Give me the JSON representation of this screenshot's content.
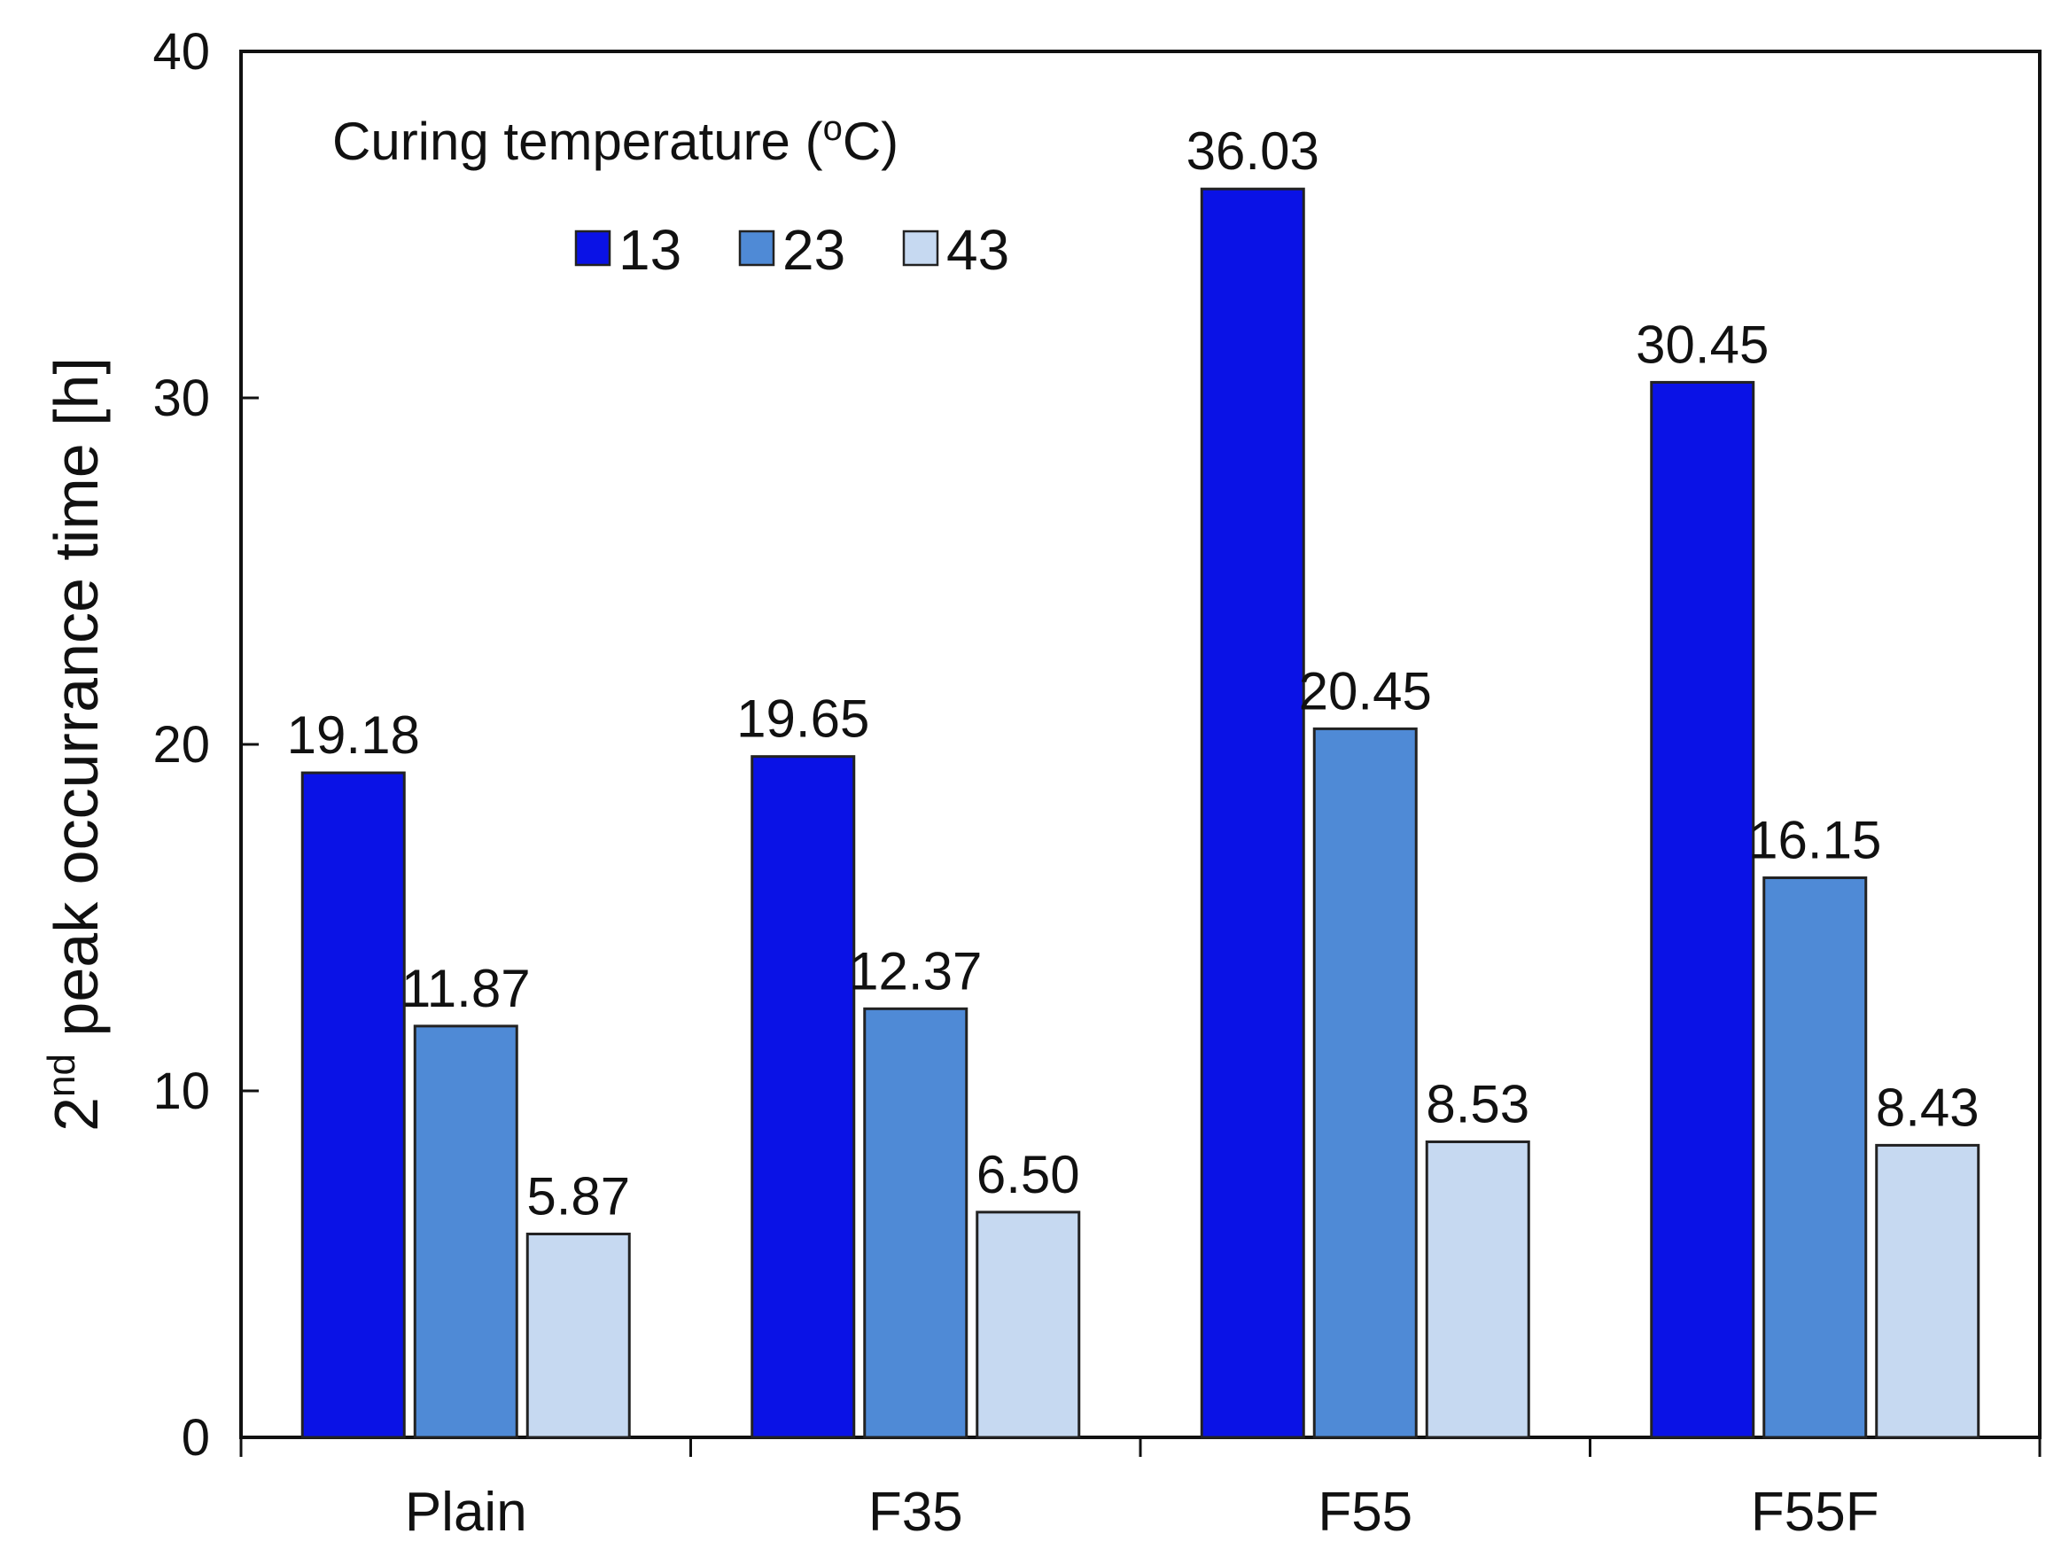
{
  "chart_data": {
    "type": "bar",
    "title": "",
    "xlabel": "",
    "ylabel": {
      "base": "2",
      "superscript": "nd",
      "rest": " peak occurrance time [h]"
    },
    "ylim": [
      0,
      40
    ],
    "yticks": [
      0,
      10,
      20,
      30,
      40
    ],
    "categories": [
      "Plain",
      "F35",
      "F55",
      "F55F"
    ],
    "legend": {
      "title": "Curing temperature (",
      "title_superscript": "o",
      "title_tail": "C)",
      "placement": "top-left"
    },
    "series": [
      {
        "name": "13",
        "color": "#0a12e6",
        "values": [
          19.18,
          19.65,
          36.03,
          30.45
        ],
        "labels": [
          "19.18",
          "19.65",
          "36.03",
          "30.45"
        ]
      },
      {
        "name": "23",
        "color": "#4f8ad6",
        "values": [
          11.87,
          12.37,
          20.45,
          16.15
        ],
        "labels": [
          "11.87",
          "12.37",
          "20.45",
          "16.15"
        ]
      },
      {
        "name": "43",
        "color": "#c6d9f1",
        "values": [
          5.87,
          6.5,
          8.53,
          8.43
        ],
        "labels": [
          "5.87",
          "6.50",
          "8.53",
          "8.43"
        ]
      }
    ]
  }
}
